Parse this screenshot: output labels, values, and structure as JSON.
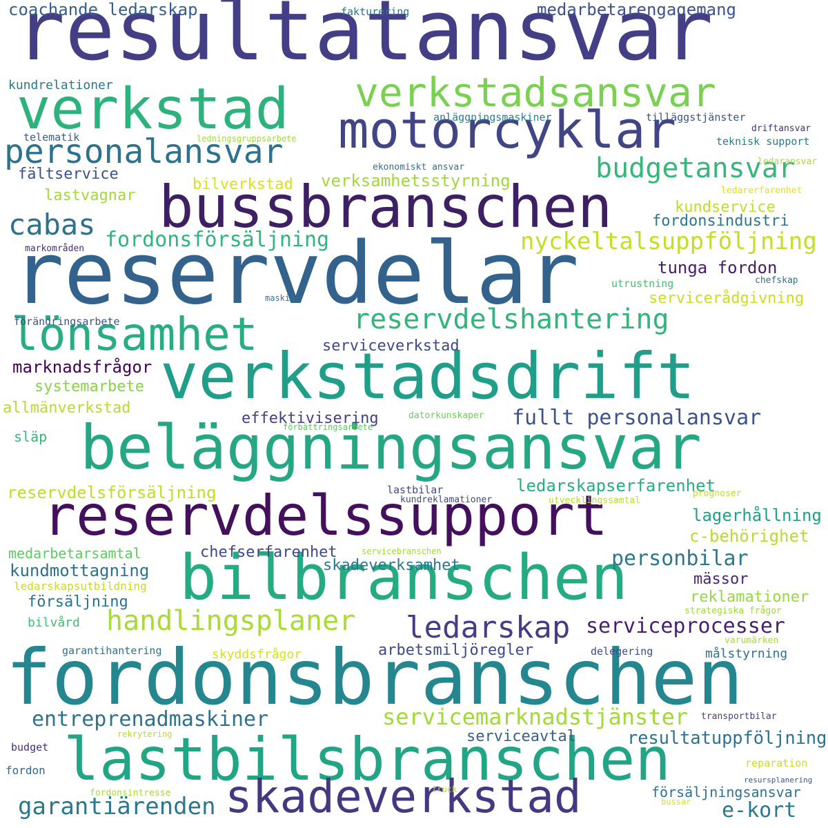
{
  "words": [
    {
      "t": "resultatansvar",
      "c": "#433e85"
    },
    {
      "t": "reservdelar",
      "c": "#33638d"
    },
    {
      "t": "fordonsbranschen",
      "c": "#24868e"
    },
    {
      "t": "verkstadsdrift",
      "c": "#1f9e89"
    },
    {
      "t": "beläggningsansvar",
      "c": "#26a784"
    },
    {
      "t": "bussbranschen",
      "c": "#3d1f63"
    },
    {
      "t": "lastbilsbranschen",
      "c": "#21a585"
    },
    {
      "t": "bilbranschen",
      "c": "#25ab82"
    },
    {
      "t": "reservdelssupport",
      "c": "#440f5c"
    },
    {
      "t": "verkstad",
      "c": "#2db27d"
    },
    {
      "t": "motorcyklar",
      "c": "#414487"
    },
    {
      "t": "verkstadsansvar",
      "c": "#7ad151"
    },
    {
      "t": "skadeverkstad",
      "c": "#453781"
    },
    {
      "t": "lönsamhet",
      "c": "#27ad81"
    },
    {
      "t": "personalansvar",
      "c": "#2c728e"
    },
    {
      "t": "reservdelshantering",
      "c": "#31b57b"
    },
    {
      "t": "handlingsplaner",
      "c": "#a8db34"
    },
    {
      "t": "nyckeltalsuppföljning",
      "c": "#c2df23"
    },
    {
      "t": "budgetansvar",
      "c": "#35b779"
    },
    {
      "t": "ledarskap",
      "c": "#433e85"
    },
    {
      "t": "cabas",
      "c": "#2c728e"
    },
    {
      "t": "serviceprocesser",
      "c": "#481f70"
    },
    {
      "t": "servicemarknadstjänster",
      "c": "#a0da39"
    },
    {
      "t": "garantiärenden",
      "c": "#2a788e"
    },
    {
      "t": "fordonsförsäljning",
      "c": "#2fb47c"
    },
    {
      "t": "fullt personalansvar",
      "c": "#3b528b"
    },
    {
      "t": "entreprenadmaskiner",
      "c": "#2c728e"
    },
    {
      "t": "e-kort",
      "c": "#2a788e"
    },
    {
      "t": "resultatuppföljning",
      "c": "#2c728e"
    },
    {
      "t": "personbilar",
      "c": "#2a788e"
    },
    {
      "t": "verksamhetsstyrning",
      "c": "#9fda3a"
    },
    {
      "t": "medarbetarengagemang",
      "c": "#3b528b"
    },
    {
      "t": "coachande ledarskap",
      "c": "#355f8d"
    },
    {
      "t": "tunga fordon",
      "c": "#481a6c"
    },
    {
      "t": "reservdelsförsäljning",
      "c": "#bddf26"
    },
    {
      "t": "ledarskapserfarenhet",
      "c": "#27ad81"
    },
    {
      "t": "effektivisering",
      "c": "#433e85"
    },
    {
      "t": "kundmottagning",
      "c": "#2c728e"
    },
    {
      "t": "lagerhållning",
      "c": "#1fa088"
    },
    {
      "t": "marknadsfrågor",
      "c": "#440154"
    },
    {
      "t": "c-behörighet",
      "c": "#b5de2b"
    },
    {
      "t": "chefserfarenhet",
      "c": "#3e4989"
    },
    {
      "t": "bilverkstad",
      "c": "#d8e219"
    },
    {
      "t": "lastvagnar",
      "c": "#a2da37"
    },
    {
      "t": "fältservice",
      "c": "#3b528b"
    },
    {
      "t": "systemarbete",
      "c": "#86d549"
    },
    {
      "t": "allmänverkstad",
      "c": "#b5de2b"
    },
    {
      "t": "servicerådgivning",
      "c": "#c8e020"
    },
    {
      "t": "kundservice",
      "c": "#bddf26"
    },
    {
      "t": "fordonsindustri",
      "c": "#2a788e"
    },
    {
      "t": "serviceverkstad",
      "c": "#3e4989"
    },
    {
      "t": "skadeverksamhet",
      "c": "#2a788e"
    },
    {
      "t": "medarbetarsamtal",
      "c": "#5ec962"
    },
    {
      "t": "reklamationer",
      "c": "#95d840"
    },
    {
      "t": "arbetsmiljöregler",
      "c": "#3e4989"
    },
    {
      "t": "serviceavtal",
      "c": "#355f8d"
    },
    {
      "t": "försäljning",
      "c": "#2c728e"
    },
    {
      "t": "mässor",
      "c": "#482576"
    },
    {
      "t": "försäljningsansvar",
      "c": "#2c728e"
    },
    {
      "t": "kundrelationer",
      "c": "#2a788e"
    },
    {
      "t": "släp",
      "c": "#35b779"
    },
    {
      "t": "bilvård",
      "c": "#3fbc73"
    },
    {
      "t": "målstyrning",
      "c": "#2c728e"
    },
    {
      "t": "skyddsfrågor",
      "c": "#d8e219"
    },
    {
      "t": "ledarskapsutbildning",
      "c": "#c2df23"
    },
    {
      "t": "fakturering",
      "c": "#2c728e"
    },
    {
      "t": "anläggningsmaskiner",
      "c": "#287c8e"
    },
    {
      "t": "tilläggstjänster",
      "c": "#3b528b"
    },
    {
      "t": "telematik",
      "c": "#38598c"
    },
    {
      "t": "ledningsgruppsarbete",
      "c": "#9fda3a"
    },
    {
      "t": "teknisk support",
      "c": "#287c8e"
    },
    {
      "t": "driftansvar",
      "c": "#472d7b"
    },
    {
      "t": "ekonomiskt ansvar",
      "c": "#2c728e"
    },
    {
      "t": "ledaransvar",
      "c": "#a8db34"
    },
    {
      "t": "ledarerfarenhet",
      "c": "#dde318"
    },
    {
      "t": "markområden",
      "c": "#472d7b"
    },
    {
      "t": "utrustning",
      "c": "#44bf70"
    },
    {
      "t": "chefskap",
      "c": "#2c728e"
    },
    {
      "t": "maskin",
      "c": "#2a788e"
    },
    {
      "t": "förändringsarbete",
      "c": "#3b528b"
    },
    {
      "t": "datorkunskaper",
      "c": "#6ccd5a"
    },
    {
      "t": "förbättringsarbete",
      "c": "#5ec962"
    },
    {
      "t": "lastbilar",
      "c": "#3e4989"
    },
    {
      "t": "kundreklamationer",
      "c": "#3e4989"
    },
    {
      "t": "utvecklingssamtal",
      "c": "#b5de2b"
    },
    {
      "t": "prognoser",
      "c": "#c2df23"
    },
    {
      "t": "servicebranschen",
      "c": "#9fda3a"
    },
    {
      "t": "strategiska frågor",
      "c": "#a0da39"
    },
    {
      "t": "varumärken",
      "c": "#a8db34"
    },
    {
      "t": "garantihantering",
      "c": "#2c728e"
    },
    {
      "t": "delegering",
      "c": "#3e4989"
    },
    {
      "t": "transportbilar",
      "c": "#433e85"
    },
    {
      "t": "rekrytering",
      "c": "#b5de2b"
    },
    {
      "t": "budget",
      "c": "#472d7b"
    },
    {
      "t": "fordon",
      "c": "#31688e"
    },
    {
      "t": "reparation",
      "c": "#c8e020"
    },
    {
      "t": "fordonsintresse",
      "c": "#a8db34"
    },
    {
      "t": "truck",
      "c": "#b5de2b"
    },
    {
      "t": "resursplanering",
      "c": "#3b528b"
    },
    {
      "t": "bussar",
      "c": "#dde318"
    }
  ]
}
